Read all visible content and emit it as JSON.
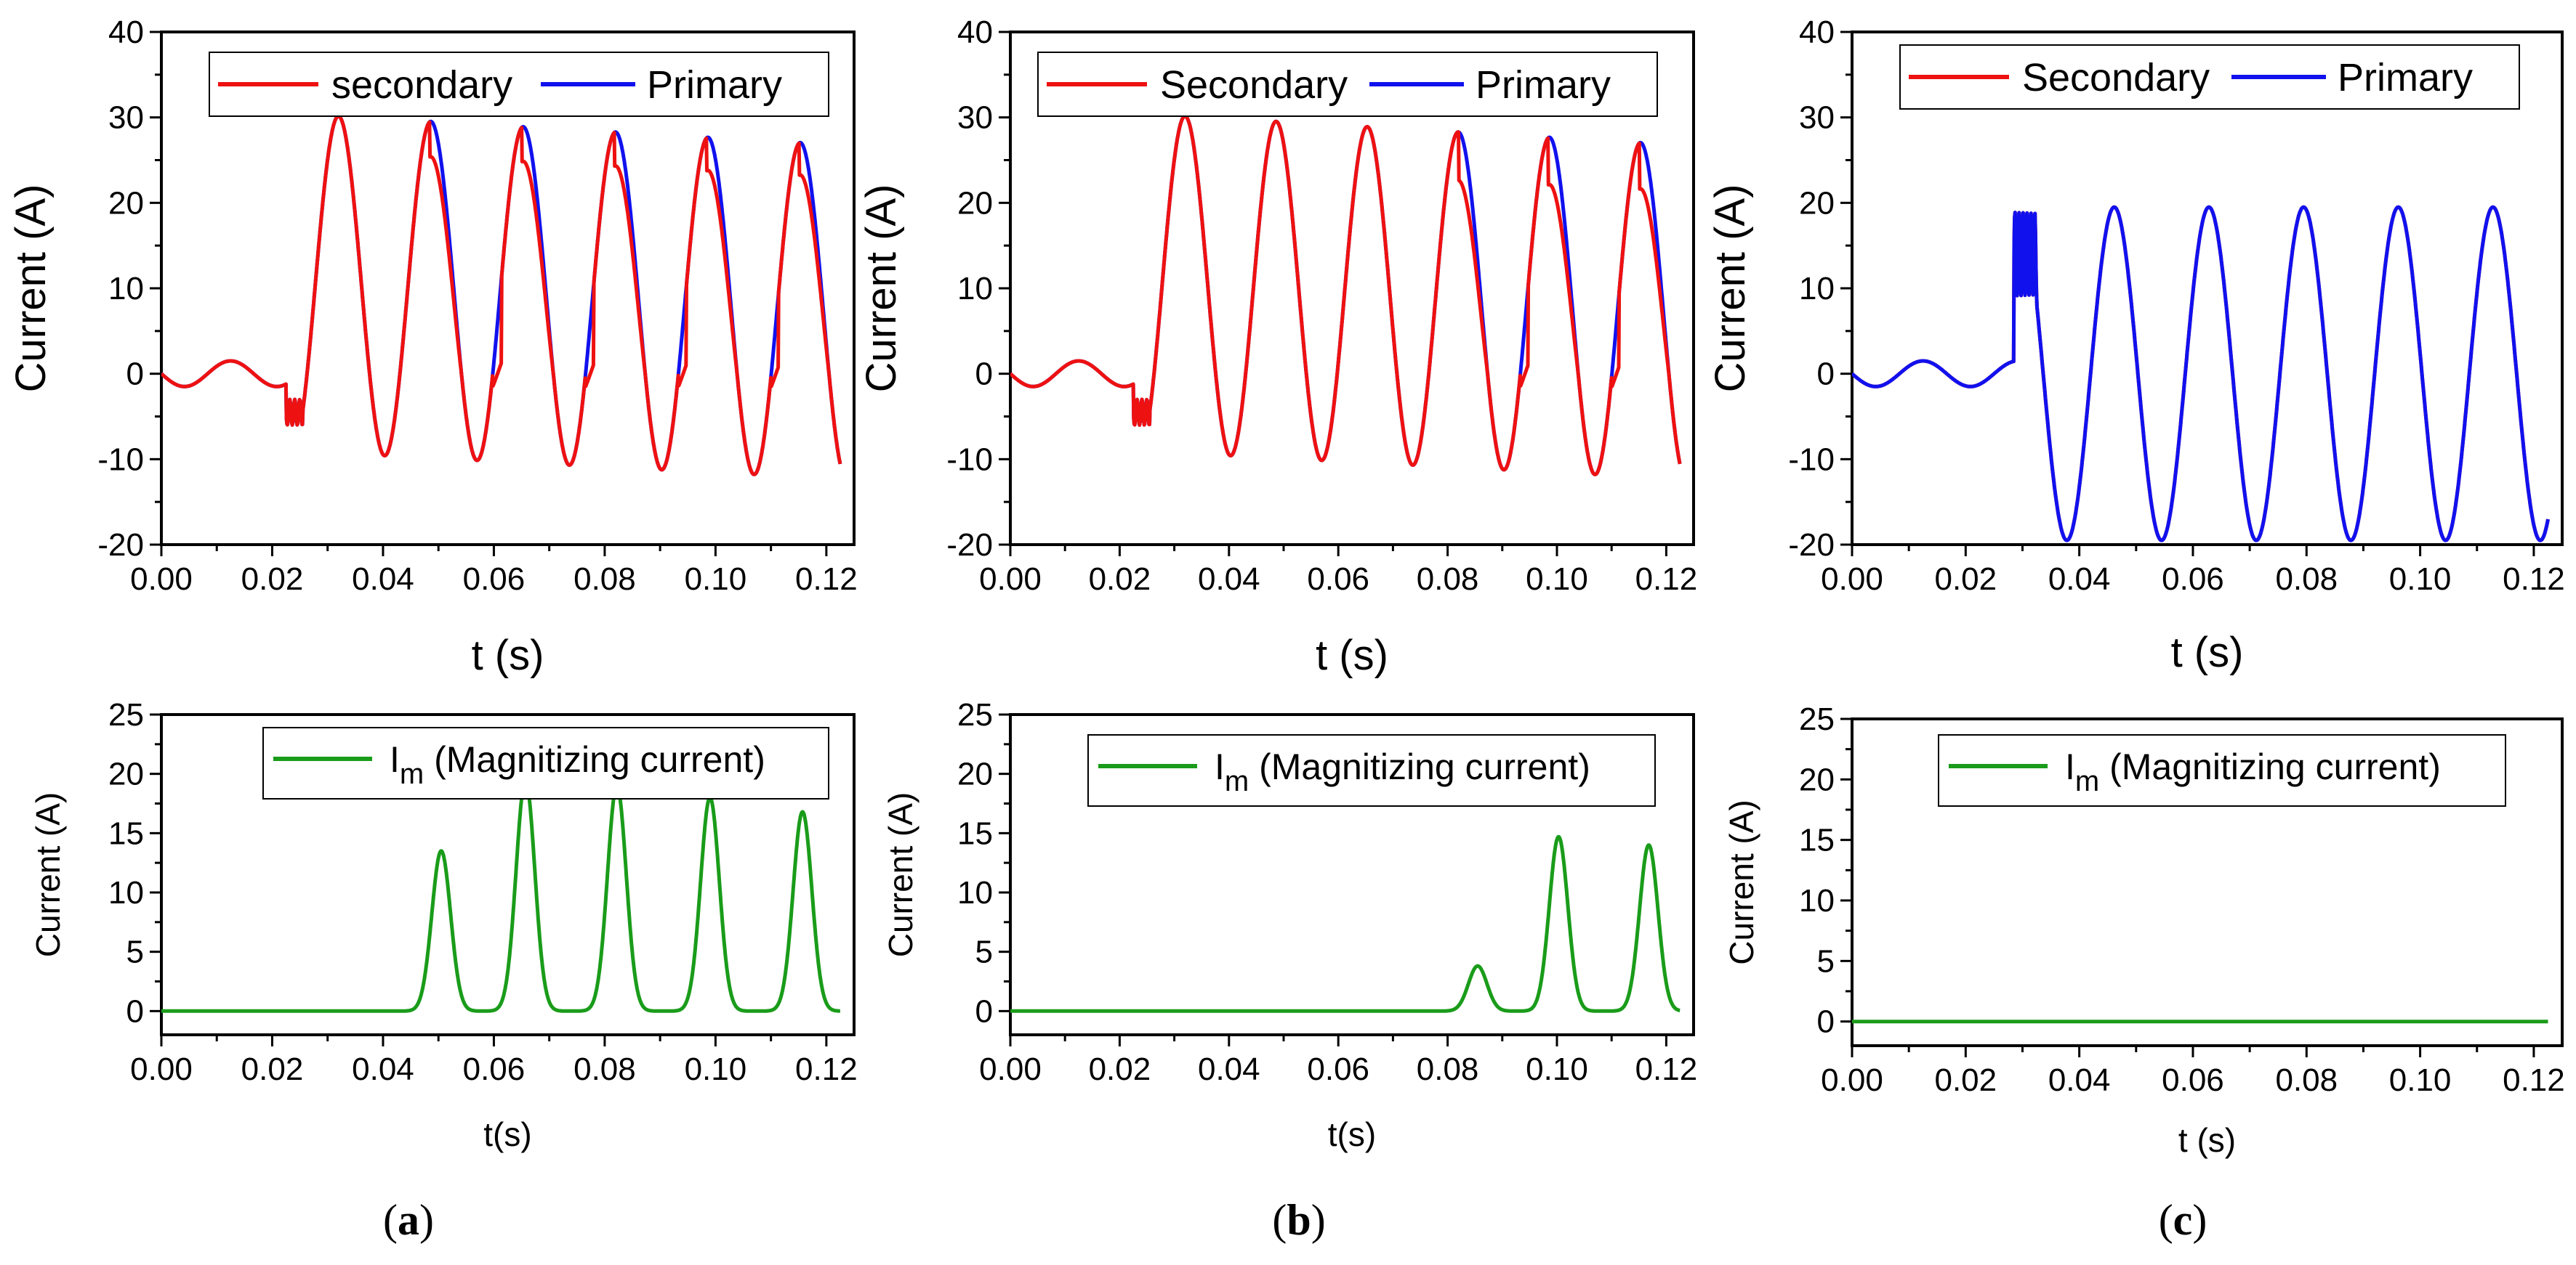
{
  "chart_data": [
    {
      "id": "a-top",
      "type": "line",
      "title": "",
      "xlabel": "t (s)",
      "ylabel": "Current (A)",
      "xlim": [
        0,
        0.125
      ],
      "ylim": [
        -20,
        40
      ],
      "xticks": [
        "0.00",
        "0.02",
        "0.04",
        "0.06",
        "0.08",
        "0.10",
        "0.12"
      ],
      "yticks": [
        "-20",
        "-10",
        "0",
        "10",
        "20",
        "30",
        "40"
      ],
      "legend": {
        "placement": "top-right",
        "entries": [
          {
            "name": "secondary",
            "color": "#ee1111"
          },
          {
            "name": "Primary",
            "color": "#1111ee"
          }
        ]
      },
      "series": [
        {
          "name": "Primary",
          "color": "#1111ee",
          "model": "wave",
          "t_fault": 0.0225,
          "pre_amp": 1.5,
          "offset": 30,
          "tau": 0.42,
          "amp": 20,
          "decay_end": 0.122
        },
        {
          "name": "secondary",
          "color": "#ee1111",
          "model": "wave_clip",
          "t_fault": 0.0225,
          "pre_amp": 1.5,
          "offset": 30,
          "tau": 0.42,
          "amp": 20,
          "sat_start": 0.048,
          "peak_scale": 0.86
        }
      ]
    },
    {
      "id": "b-top",
      "type": "line",
      "title": "",
      "xlabel": "t (s)",
      "ylabel": "Current (A)",
      "xlim": [
        0,
        0.125
      ],
      "ylim": [
        -20,
        40
      ],
      "xticks": [
        "0.00",
        "0.02",
        "0.04",
        "0.06",
        "0.08",
        "0.10",
        "0.12"
      ],
      "yticks": [
        "-20",
        "-10",
        "0",
        "10",
        "20",
        "30",
        "40"
      ],
      "legend": {
        "placement": "top-right",
        "entries": [
          {
            "name": "Secondary",
            "color": "#ee1111"
          },
          {
            "name": "Primary",
            "color": "#1111ee"
          }
        ]
      },
      "series": [
        {
          "name": "Primary",
          "color": "#1111ee",
          "model": "wave",
          "t_fault": 0.0225,
          "pre_amp": 1.5,
          "offset": 30,
          "tau": 0.42,
          "amp": 20
        },
        {
          "name": "Secondary",
          "color": "#ee1111",
          "model": "wave_clip",
          "t_fault": 0.0225,
          "pre_amp": 1.5,
          "offset": 30,
          "tau": 0.42,
          "amp": 20,
          "sat_start": 0.082,
          "peak_scale": 0.8
        }
      ]
    },
    {
      "id": "c-top",
      "type": "line",
      "title": "",
      "xlabel": "t (s)",
      "ylabel": "Current (A)",
      "xlim": [
        0,
        0.125
      ],
      "ylim": [
        -20,
        40
      ],
      "xticks": [
        "0.00",
        "0.02",
        "0.04",
        "0.06",
        "0.08",
        "0.10",
        "0.12"
      ],
      "yticks": [
        "-20",
        "-10",
        "0",
        "10",
        "20",
        "30",
        "40"
      ],
      "legend": {
        "placement": "top-right",
        "entries": [
          {
            "name": "Secondary",
            "color": "#ee1111"
          },
          {
            "name": "Primary",
            "color": "#1111ee"
          }
        ]
      },
      "series": [
        {
          "name": "Secondary",
          "color": "#ee1111",
          "model": "sym",
          "t_fault": 0.0285,
          "pre_amp": 1.5,
          "amp": 19.5
        },
        {
          "name": "Primary",
          "color": "#1111ee",
          "model": "sym",
          "t_fault": 0.0285,
          "pre_amp": 1.5,
          "amp": 19.5
        }
      ]
    },
    {
      "id": "a-bottom",
      "type": "line",
      "title": "",
      "xlabel": "t(s)",
      "ylabel": "Current (A)",
      "xlim": [
        0,
        0.125
      ],
      "ylim": [
        -2,
        25
      ],
      "xticks": [
        "0.00",
        "0.02",
        "0.04",
        "0.06",
        "0.08",
        "0.10",
        "0.12"
      ],
      "yticks": [
        "0",
        "5",
        "10",
        "15",
        "20",
        "25"
      ],
      "legend": {
        "placement": "top-right",
        "entries": [
          {
            "name": "I",
            "sub": "m",
            "rest": " (Magnitizing current)",
            "color": "#1a9c1a"
          }
        ]
      },
      "series": [
        {
          "name": "Im (Magnitizing current)",
          "color": "#1a9c1a",
          "model": "peaks",
          "peaks": [
            {
              "t": 0.0505,
              "h": 13.5
            },
            {
              "t": 0.0657,
              "h": 19.5
            },
            {
              "t": 0.0822,
              "h": 19.0
            },
            {
              "t": 0.099,
              "h": 18.0
            },
            {
              "t": 0.1157,
              "h": 16.8
            }
          ]
        }
      ]
    },
    {
      "id": "b-bottom",
      "type": "line",
      "title": "",
      "xlabel": "t(s)",
      "ylabel": "Current (A)",
      "xlim": [
        0,
        0.125
      ],
      "ylim": [
        -2,
        25
      ],
      "xticks": [
        "0.00",
        "0.02",
        "0.04",
        "0.06",
        "0.08",
        "0.10",
        "0.12"
      ],
      "yticks": [
        "0",
        "5",
        "10",
        "15",
        "20",
        "25"
      ],
      "legend": {
        "placement": "top-right",
        "entries": [
          {
            "name": "I",
            "sub": "m",
            "rest": " (Magnitizing current)",
            "color": "#1a9c1a"
          }
        ]
      },
      "series": [
        {
          "name": "Im (Magnitizing current)",
          "color": "#1a9c1a",
          "model": "peaks",
          "peaks": [
            {
              "t": 0.0855,
              "h": 3.8
            },
            {
              "t": 0.1003,
              "h": 14.7
            },
            {
              "t": 0.1168,
              "h": 14.0
            }
          ]
        }
      ]
    },
    {
      "id": "c-bottom",
      "type": "line",
      "title": "",
      "xlabel": "t (s)",
      "ylabel": "Current (A)",
      "xlim": [
        0,
        0.125
      ],
      "ylim": [
        -2,
        25
      ],
      "xticks": [
        "0.00",
        "0.02",
        "0.04",
        "0.06",
        "0.08",
        "0.10",
        "0.12"
      ],
      "yticks": [
        "0",
        "5",
        "10",
        "15",
        "20",
        "25"
      ],
      "legend": {
        "placement": "top-right",
        "entries": [
          {
            "name": "I",
            "sub": "m",
            "rest": " (Magnitizing current)",
            "color": "#1a9c1a"
          }
        ]
      },
      "series": [
        {
          "name": "Im (Magnitizing current)",
          "color": "#1a9c1a",
          "model": "zero",
          "peaks": []
        }
      ]
    }
  ],
  "panel_labels": [
    {
      "open": "(",
      "letter": "a",
      "close": ")"
    },
    {
      "open": "(",
      "letter": "b",
      "close": ")"
    },
    {
      "open": "(",
      "letter": "c",
      "close": ")"
    }
  ]
}
